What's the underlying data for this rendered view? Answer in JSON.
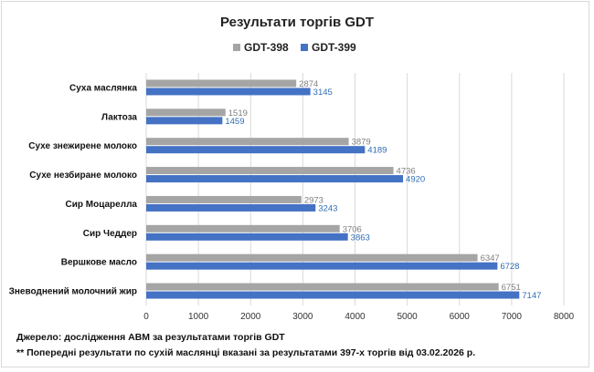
{
  "chart_data": {
    "type": "bar",
    "orientation": "horizontal",
    "title": "Результати торгів GDT",
    "categories": [
      "Суха маслянка",
      "Лактоза",
      "Сухе знежирене молоко",
      "Сухе незбиране молоко",
      "Сир Моцарелла",
      "Сир Чеддер",
      "Вершкове масло",
      "Зневоднений молочний жир"
    ],
    "series": [
      {
        "name": "GDT-398",
        "color": "#a5a5a5",
        "values": [
          2874,
          1519,
          3879,
          4736,
          2973,
          3706,
          6347,
          6751
        ]
      },
      {
        "name": "GDT-399",
        "color": "#4472c4",
        "values": [
          3145,
          1459,
          4189,
          4920,
          3243,
          3863,
          6728,
          7147
        ]
      }
    ],
    "xlim": [
      0,
      8000
    ],
    "xticks": [
      "0",
      "1000",
      "2000",
      "3000",
      "4000",
      "5000",
      "6000",
      "7000",
      "8000"
    ],
    "grid": true,
    "legend_position": "top-center",
    "data_labels": true
  },
  "notes": {
    "source": "Джерело: дослідження АВМ за результатами  торгів GDT",
    "footnote": "** Попередні результати  по сухій маслянці  вказані  за результатами  397-х торгів від 03.02.2026 р."
  }
}
